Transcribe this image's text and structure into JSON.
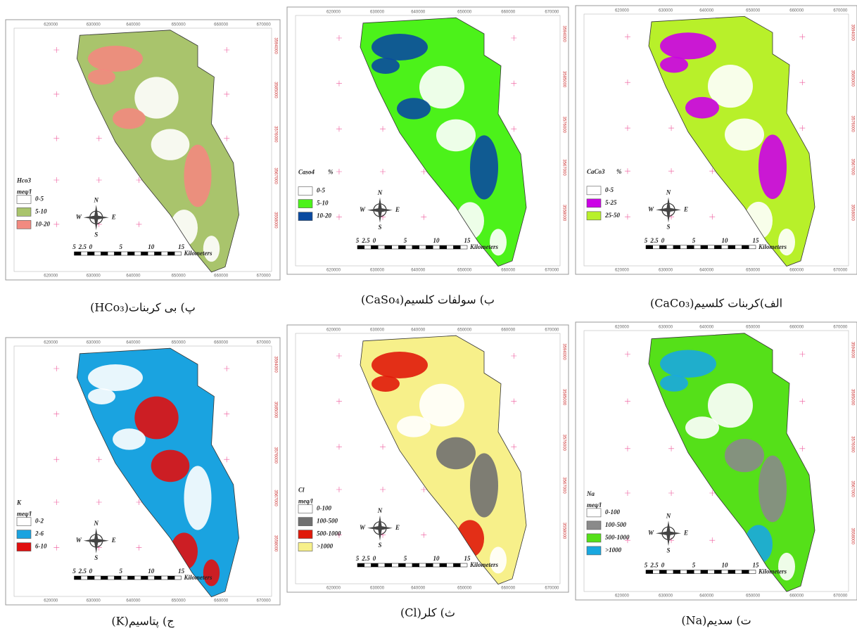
{
  "x_ticks": [
    "620000",
    "630000",
    "640000",
    "650000",
    "660000",
    "670000"
  ],
  "y_ticks": [
    "3594000",
    "3585000",
    "3576000",
    "3567000",
    "3558000"
  ],
  "scale_labels": [
    "5",
    "2.5",
    "0",
    "5",
    "10",
    "15"
  ],
  "scale_unit": "Kilometers",
  "compass": [
    "N",
    "W",
    "E",
    "S"
  ],
  "maps": [
    {
      "caption": "پ) بی کربنات(HCo₃)",
      "legend_title": "Hco3",
      "legend_unit": "meq/l",
      "classes": [
        {
          "label": "0-5",
          "color": "#ffffff"
        },
        {
          "label": "5-10",
          "color": "#a9c46c"
        },
        {
          "label": "10-20",
          "color": "#f28a80"
        }
      ]
    },
    {
      "caption": "ب) سولفات کلسیم(CaSo₄)",
      "legend_title": "Caso4",
      "legend_unit": "%",
      "classes": [
        {
          "label": "0-5",
          "color": "#ffffff"
        },
        {
          "label": "5-10",
          "color": "#4cf21a"
        },
        {
          "label": "10-20",
          "color": "#0a4aa0"
        }
      ]
    },
    {
      "caption": "الف)کربنات کلسیم(CaCo₃)",
      "legend_title": "CaCo3",
      "legend_unit": "%",
      "classes": [
        {
          "label": "0-5",
          "color": "#ffffff"
        },
        {
          "label": "5-25",
          "color": "#cc00e6"
        },
        {
          "label": "25-50",
          "color": "#b8f02a"
        }
      ]
    },
    {
      "caption": "ج) پتاسیم(K)",
      "legend_title": "K",
      "legend_unit": "meq/l",
      "classes": [
        {
          "label": "0-2",
          "color": "#ffffff"
        },
        {
          "label": "2-6",
          "color": "#1aa3e0"
        },
        {
          "label": "6-10",
          "color": "#e01010"
        }
      ]
    },
    {
      "caption": "ث) کلر(Cl)",
      "legend_title": "Cl",
      "legend_unit": "meq/l",
      "classes": [
        {
          "label": "0-100",
          "color": "#ffffff"
        },
        {
          "label": "100-500",
          "color": "#707070"
        },
        {
          "label": "500-1000",
          "color": "#e01a0a"
        },
        {
          "label": ">1000",
          "color": "#f7f08a"
        }
      ]
    },
    {
      "caption": "ت) سدیم(Na)",
      "legend_title": "Na",
      "legend_unit": "meq/l",
      "classes": [
        {
          "label": "0-100",
          "color": "#ffffff"
        },
        {
          "label": "100-500",
          "color": "#8a8a8a"
        },
        {
          "label": "500-1000",
          "color": "#55e019"
        },
        {
          "label": ">1000",
          "color": "#19a8e0"
        }
      ]
    }
  ]
}
